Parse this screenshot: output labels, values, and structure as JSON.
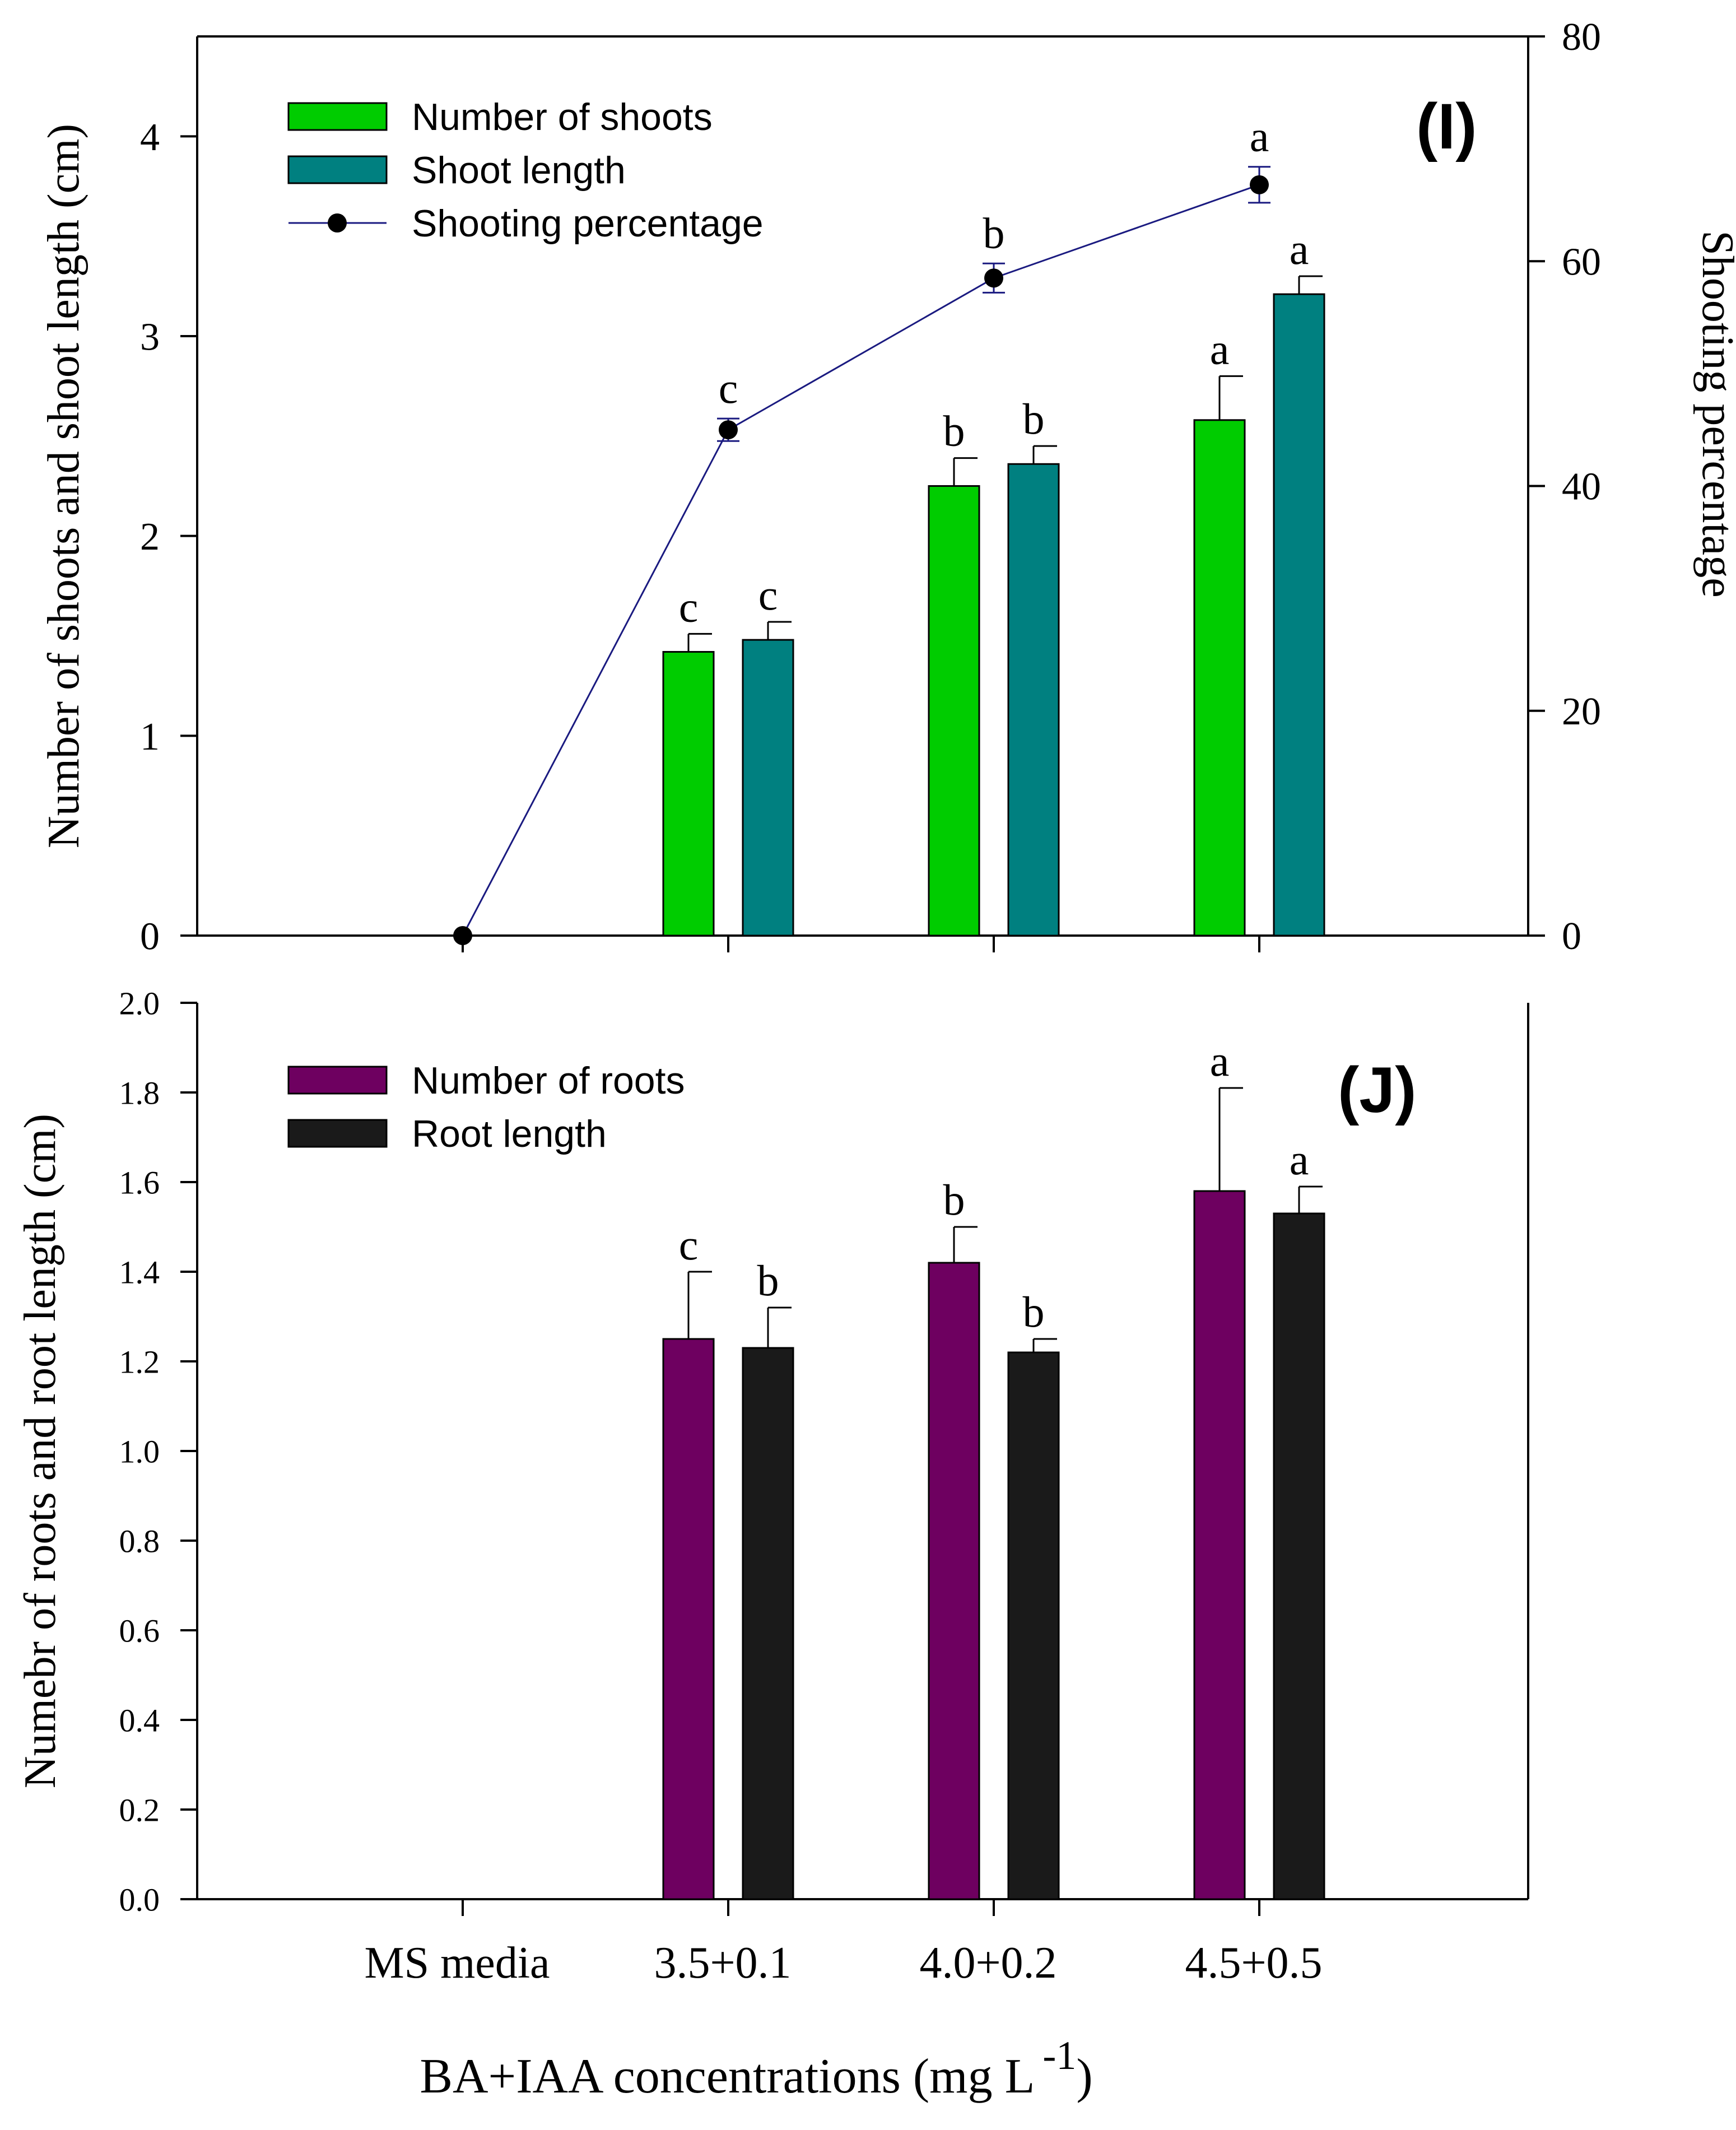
{
  "chart_data": [
    {
      "type": "bar",
      "panel_label": "(I)",
      "categories": [
        "MS media",
        "3.5+0.1",
        "4.0+0.2",
        "4.5+0.5"
      ],
      "ylabel": "Number of shoots and shoot length (cm)",
      "y2label": "Shooting percentage",
      "ylim": [
        0,
        4.5
      ],
      "y2lim": [
        0,
        80
      ],
      "yticks": [
        "0",
        "1",
        "2",
        "3",
        "4"
      ],
      "y2ticks": [
        "0",
        "20",
        "40",
        "60",
        "80"
      ],
      "legend_position": "top-left",
      "series": [
        {
          "name": "Number of shoots",
          "kind": "bar",
          "color": "#00cc00",
          "values": [
            0,
            1.42,
            2.25,
            2.58
          ],
          "errors": [
            0,
            0.09,
            0.14,
            0.22
          ],
          "letters": [
            "",
            "c",
            "b",
            "a"
          ]
        },
        {
          "name": "Shoot length",
          "kind": "bar",
          "color": "#008080",
          "values": [
            0,
            1.48,
            2.36,
            3.21
          ],
          "errors": [
            0,
            0.09,
            0.09,
            0.09
          ],
          "letters": [
            "",
            "c",
            "b",
            "a"
          ]
        },
        {
          "name": "Shooting percentage",
          "kind": "line",
          "axis": "right",
          "color": "#1a1a80",
          "values": [
            0,
            45,
            58.5,
            66.8
          ],
          "errors": [
            0,
            1.0,
            1.3,
            1.6
          ],
          "letters": [
            "",
            "c",
            "b",
            "a"
          ]
        }
      ]
    },
    {
      "type": "bar",
      "panel_label": "(J)",
      "categories": [
        "MS media",
        "3.5+0.1",
        "4.0+0.2",
        "4.5+0.5"
      ],
      "xlabel": "BA+IAA concentrations (mg L",
      "xlabel_sup": "-1",
      "xlabel_end": ")",
      "ylabel": "Numebr of roots and root length (cm)",
      "ylim": [
        0,
        2.0
      ],
      "yticks": [
        "0.0",
        "0.2",
        "0.4",
        "0.6",
        "0.8",
        "1.0",
        "1.2",
        "1.4",
        "1.6",
        "1.8",
        "2.0"
      ],
      "legend_position": "top-left",
      "series": [
        {
          "name": "Number of roots",
          "kind": "bar",
          "color": "#6e0060",
          "values": [
            0,
            1.25,
            1.42,
            1.58
          ],
          "errors": [
            0,
            0.15,
            0.08,
            0.23
          ],
          "letters": [
            "",
            "c",
            "b",
            "a"
          ]
        },
        {
          "name": "Root length",
          "kind": "bar",
          "color": "#1a1a1a",
          "values": [
            0,
            1.23,
            1.22,
            1.53
          ],
          "errors": [
            0,
            0.09,
            0.03,
            0.06
          ],
          "letters": [
            "",
            "b",
            "b",
            "a"
          ]
        }
      ]
    }
  ]
}
